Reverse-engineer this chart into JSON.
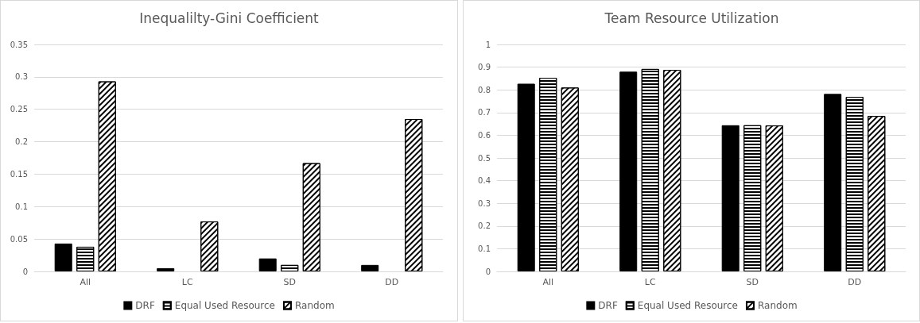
{
  "chart_data": [
    {
      "type": "bar",
      "title": "Inequalilty-Gini Coefficient",
      "categories": [
        "All",
        "LC",
        "SD",
        "DD"
      ],
      "series": [
        {
          "name": "DRF",
          "color": "#000000",
          "values": [
            0.043,
            0.005,
            0.02,
            0.01
          ]
        },
        {
          "name": "Equal Used Resource",
          "color": "#ffffff",
          "values": [
            0.038,
            0,
            0.01,
            0
          ]
        },
        {
          "name": "Random",
          "color": "#ffffff",
          "values": [
            0.293,
            0.077,
            0.167,
            0.235
          ]
        }
      ],
      "ylim": [
        0,
        0.35
      ],
      "yticks": [
        0,
        0.05,
        0.1,
        0.15,
        0.2,
        0.25,
        0.3,
        0.35
      ],
      "grid": "y",
      "legend": "bottom"
    },
    {
      "type": "bar",
      "title": "Team Resource Utilization",
      "categories": [
        "All",
        "LC",
        "SD",
        "DD"
      ],
      "series": [
        {
          "name": "DRF",
          "color": "#000000",
          "values": [
            0.827,
            0.88,
            0.644,
            0.782
          ]
        },
        {
          "name": "Equal Used Resource",
          "color": "#ffffff",
          "values": [
            0.853,
            0.892,
            0.644,
            0.769
          ]
        },
        {
          "name": "Random",
          "color": "#ffffff",
          "values": [
            0.81,
            0.888,
            0.643,
            0.685
          ]
        }
      ],
      "ylim": [
        0,
        1
      ],
      "yticks": [
        0,
        0.1,
        0.2,
        0.3,
        0.4,
        0.5,
        0.6,
        0.7,
        0.8,
        0.9,
        1
      ],
      "grid": "y",
      "legend": "bottom"
    }
  ]
}
